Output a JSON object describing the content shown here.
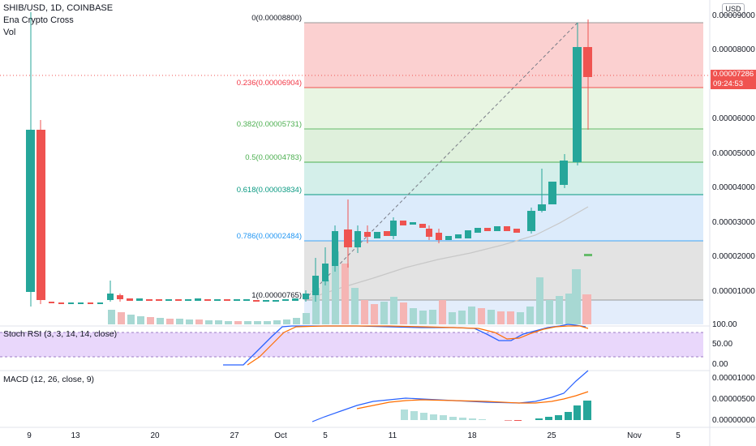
{
  "header": {
    "symbol": "SHIB/USD, 1D, COINBASE",
    "indicator1": "Ena Crypto Cross",
    "indicator2": "Vol"
  },
  "currency_button": "USD",
  "price_scale": [
    "0.00009000",
    "0.00008000",
    "0.00006000",
    "0.00005000",
    "0.00004000",
    "0.00003000",
    "0.00002000",
    "0.00001000"
  ],
  "last_price": {
    "value": "0.00007286",
    "countdown": "09:24:53"
  },
  "fib_levels": [
    {
      "label": "0(0.00008800)",
      "color": "#787b86"
    },
    {
      "label": "0.236(0.00006904)",
      "color": "#f23645"
    },
    {
      "label": "0.382(0.00005731)",
      "color": "#4caf50"
    },
    {
      "label": "0.5(0.00004783)",
      "color": "#4caf50"
    },
    {
      "label": "0.618(0.00003834)",
      "color": "#089981"
    },
    {
      "label": "0.786(0.00002484)",
      "color": "#2196f3"
    },
    {
      "label": "1(0.00000765)",
      "color": "#787b86"
    }
  ],
  "stoch": {
    "title": "Stoch RSI (3, 3, 14, 14, close)",
    "scale": [
      "100.00",
      "50.00",
      "0.00"
    ]
  },
  "macd": {
    "title": "MACD (12, 26, close, 9)",
    "scale": [
      "0.00001000",
      "0.00000500",
      "0.00000000"
    ]
  },
  "time_axis": [
    "9",
    "13",
    "20",
    "27",
    "Oct",
    "5",
    "11",
    "18",
    "25",
    "Nov",
    "5"
  ],
  "colors": {
    "up": "#26a69a",
    "down": "#ef5350"
  }
}
